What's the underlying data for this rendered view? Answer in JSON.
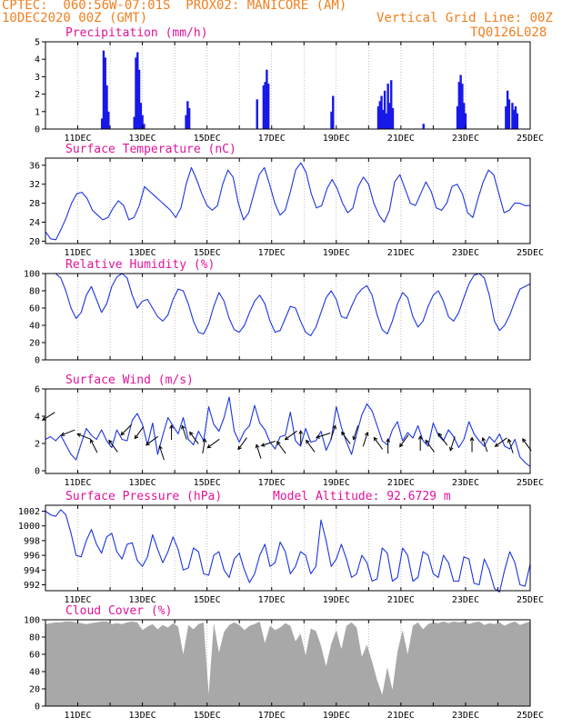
{
  "header": {
    "line1_left": "CPTEC:  060:56W-07:01S  PROX02: MANICORE (AM)",
    "line2_left": "10DEC2020 00Z (GMT)",
    "line2_right": "Vertical Grid Line: 00Z",
    "line3_right": "TQ0126L028"
  },
  "x_axis": {
    "start_day": 10,
    "end_day": 25,
    "labels": [
      "11DEC",
      "13DEC",
      "15DEC",
      "17DEC",
      "19DEC",
      "21DEC",
      "23DEC",
      "25DEC"
    ],
    "label_days": [
      11,
      13,
      15,
      17,
      19,
      21,
      23,
      25
    ]
  },
  "colors": {
    "line": "#1c36e0",
    "bars": "#1818e8",
    "cloud": "#a8a8a8",
    "title": "#e0149a",
    "header": "#f08020"
  },
  "chart_data": [
    {
      "type": "bar",
      "id": "precip",
      "title": "Precipitation (mm/h)",
      "ylim": [
        0,
        5
      ],
      "yticks": [
        "0",
        "1",
        "2",
        "3",
        "4",
        "5"
      ],
      "bars": [
        [
          11.75,
          0.6
        ],
        [
          11.8,
          4.5
        ],
        [
          11.85,
          4.1
        ],
        [
          11.9,
          2.5
        ],
        [
          11.95,
          1.0
        ],
        [
          12.75,
          0.7
        ],
        [
          12.8,
          4.1
        ],
        [
          12.85,
          4.4
        ],
        [
          12.9,
          3.4
        ],
        [
          12.95,
          1.5
        ],
        [
          13.0,
          0.8
        ],
        [
          13.05,
          0.3
        ],
        [
          14.35,
          0.8
        ],
        [
          14.4,
          1.6
        ],
        [
          14.45,
          1.2
        ],
        [
          16.55,
          1.7
        ],
        [
          16.75,
          2.5
        ],
        [
          16.8,
          2.7
        ],
        [
          16.85,
          3.4
        ],
        [
          16.9,
          2.6
        ],
        [
          18.85,
          1.0
        ],
        [
          18.9,
          1.9
        ],
        [
          20.3,
          1.3
        ],
        [
          20.35,
          1.6
        ],
        [
          20.4,
          1.9
        ],
        [
          20.45,
          1.1
        ],
        [
          20.5,
          2.2
        ],
        [
          20.55,
          0.9
        ],
        [
          20.6,
          2.6
        ],
        [
          20.65,
          1.5
        ],
        [
          20.7,
          2.8
        ],
        [
          20.75,
          1.2
        ],
        [
          21.7,
          0.3
        ],
        [
          22.75,
          1.3
        ],
        [
          22.8,
          2.7
        ],
        [
          22.85,
          3.1
        ],
        [
          22.9,
          2.6
        ],
        [
          22.95,
          1.5
        ],
        [
          23.0,
          0.9
        ],
        [
          24.25,
          1.3
        ],
        [
          24.3,
          2.2
        ],
        [
          24.35,
          1.7
        ],
        [
          24.45,
          1.5
        ],
        [
          24.5,
          1.1
        ],
        [
          24.55,
          1.3
        ],
        [
          24.6,
          0.9
        ]
      ]
    },
    {
      "type": "line",
      "id": "temp",
      "title": "Surface Temperature (nC)",
      "ylim": [
        19.5,
        37.5
      ],
      "yticks": [
        "20",
        "24",
        "28",
        "32",
        "36"
      ],
      "ytick_values": [
        20,
        24,
        28,
        32,
        36
      ],
      "values": [
        22,
        20.5,
        20.3,
        22.5,
        25,
        28,
        30,
        30.3,
        29,
        26.5,
        25.5,
        24.5,
        25,
        27,
        28.5,
        27.5,
        24.5,
        25,
        27.5,
        31.5,
        30.5,
        29.5,
        28.5,
        27.5,
        26.5,
        25,
        27,
        32,
        35.5,
        33,
        30,
        27.5,
        26.5,
        27.5,
        32,
        35,
        33.5,
        28,
        24.5,
        26,
        30,
        34,
        35.5,
        32,
        28,
        25.5,
        26.5,
        30.5,
        35,
        36.5,
        34.5,
        30,
        27,
        27.5,
        31,
        33,
        31,
        28,
        26,
        27,
        31.5,
        33.5,
        32,
        28,
        25.5,
        24,
        26.5,
        32.5,
        34,
        31,
        28,
        27.5,
        30,
        32.5,
        30.5,
        27,
        26.5,
        28,
        31.5,
        32,
        30,
        26,
        25,
        29,
        32.5,
        35,
        34,
        30,
        26,
        26.5,
        28,
        28,
        27.5,
        27.5
      ]
    },
    {
      "type": "line",
      "id": "rh",
      "title": "Relative Humidity (%)",
      "ylim": [
        0,
        100
      ],
      "yticks": [
        "0",
        "20",
        "40",
        "60",
        "80",
        "100"
      ],
      "ytick_values": [
        0,
        20,
        40,
        60,
        80,
        100
      ],
      "values": [
        100,
        100,
        100,
        95,
        80,
        60,
        48,
        55,
        75,
        85,
        70,
        55,
        65,
        85,
        96,
        100,
        95,
        75,
        60,
        68,
        70,
        60,
        50,
        45,
        52,
        70,
        82,
        80,
        65,
        45,
        32,
        30,
        42,
        62,
        78,
        68,
        48,
        35,
        32,
        40,
        55,
        68,
        75,
        65,
        45,
        32,
        34,
        48,
        62,
        60,
        45,
        32,
        28,
        38,
        55,
        72,
        80,
        70,
        50,
        48,
        62,
        75,
        82,
        86,
        75,
        52,
        35,
        30,
        45,
        65,
        78,
        72,
        50,
        38,
        45,
        62,
        75,
        80,
        68,
        50,
        45,
        55,
        72,
        88,
        98,
        100,
        95,
        75,
        45,
        34,
        40,
        52,
        68,
        82,
        85,
        88
      ]
    },
    {
      "type": "line",
      "id": "wind",
      "title": "Surface Wind (m/s)",
      "ylim": [
        -0.2,
        6
      ],
      "yticks": [
        "0",
        "2",
        "4",
        "6"
      ],
      "ytick_values": [
        0,
        2,
        4,
        6
      ],
      "values": [
        2.3,
        2.5,
        2.2,
        2.6,
        1.9,
        1.2,
        0.8,
        2.0,
        3.1,
        2.6,
        2.3,
        3.0,
        2.2,
        1.7,
        3.0,
        2.3,
        2.2,
        3.7,
        4.2,
        3.4,
        1.9,
        3.5,
        1.2,
        2.6,
        3.9,
        3.3,
        2.7,
        3.9,
        2.3,
        1.9,
        2.9,
        2.2,
        4.7,
        3.4,
        2.9,
        3.9,
        5.4,
        2.9,
        2.1,
        2.9,
        3.3,
        4.8,
        3.5,
        3.0,
        2.1,
        1.6,
        2.5,
        2.6,
        4.3,
        2.2,
        1.8,
        3.1,
        2.1,
        2.2,
        2.9,
        1.5,
        2.3,
        4.7,
        3.2,
        2.1,
        1.2,
        2.7,
        4.1,
        4.9,
        4.4,
        3.3,
        2.2,
        1.9,
        3.0,
        3.6,
        2.2,
        2.8,
        2.4,
        3.3,
        2.2,
        1.8,
        3.5,
        2.6,
        2.2,
        3.0,
        2.5,
        1.7,
        2.3,
        3.6,
        2.7,
        2.2,
        1.8,
        2.5,
        2.1,
        2.7,
        1.8,
        1.6,
        2.3,
        1.0,
        0.6,
        0.3
      ],
      "arrows": [
        [
          10.1,
          4,
          0.18
        ],
        [
          10.7,
          2.8,
          0.12
        ],
        [
          11.2,
          2.5,
          -0.12
        ],
        [
          11.5,
          1.8,
          -0.35
        ],
        [
          12.1,
          1.8,
          -0.3
        ],
        [
          12.5,
          3.0,
          0.25
        ],
        [
          12.9,
          2.8,
          0.3
        ],
        [
          13.3,
          2.2,
          0.2
        ],
        [
          13.6,
          1.3,
          -0.4
        ],
        [
          13.9,
          2.8,
          -0.5
        ],
        [
          14.3,
          2.8,
          -0.4
        ],
        [
          14.6,
          2.4,
          -0.3
        ],
        [
          14.9,
          1.8,
          -0.55
        ],
        [
          15.2,
          2.0,
          0.2
        ],
        [
          16.1,
          2.0,
          0.3
        ],
        [
          16.6,
          1.4,
          -0.4
        ],
        [
          16.9,
          2.0,
          0.1
        ],
        [
          17.3,
          1.7,
          -0.3
        ],
        [
          17.6,
          2.6,
          0.2
        ],
        [
          17.9,
          2.4,
          -0.5
        ],
        [
          18.2,
          1.8,
          -0.3
        ],
        [
          18.6,
          2.6,
          0.1
        ],
        [
          18.9,
          2.8,
          -0.6
        ],
        [
          19.3,
          2.4,
          -0.3
        ],
        [
          19.6,
          2.8,
          0.4
        ],
        [
          19.9,
          2.3,
          -0.6
        ],
        [
          20.3,
          2.0,
          -0.3
        ],
        [
          20.6,
          1.8,
          -0.5
        ],
        [
          21.1,
          2.2,
          0.3
        ],
        [
          21.6,
          2.0,
          -0.5
        ],
        [
          21.9,
          1.8,
          -0.3
        ],
        [
          22.3,
          2.3,
          -0.3
        ],
        [
          22.6,
          2.0,
          0.4
        ],
        [
          23.2,
          1.9,
          -0.5
        ],
        [
          23.6,
          1.9,
          -0.4
        ],
        [
          24.1,
          2.1,
          0.2
        ],
        [
          24.4,
          1.8,
          -0.4
        ],
        [
          24.9,
          1.9,
          -0.3
        ]
      ]
    },
    {
      "type": "line",
      "id": "pres",
      "title": "Surface Pressure (hPa)",
      "annotation": "Model Altitude: 92.6729 m",
      "ylim": [
        991.2,
        1002.8
      ],
      "yticks": [
        "992",
        "994",
        "996",
        "998",
        "1000",
        "1002"
      ],
      "ytick_values": [
        992,
        994,
        996,
        998,
        1000,
        1002
      ],
      "values": [
        1002,
        1001.5,
        1001.3,
        1002.2,
        1001.5,
        999,
        996,
        995.8,
        998,
        999.5,
        997.5,
        996.3,
        998.5,
        999,
        996.5,
        995.5,
        997.5,
        997.7,
        995.3,
        994.5,
        995.8,
        998.8,
        996.8,
        995,
        996.5,
        998.5,
        996.8,
        994,
        994.3,
        997,
        996.5,
        993.5,
        993.3,
        996,
        996.5,
        994,
        993,
        995.5,
        996.3,
        994,
        992.3,
        993.5,
        996,
        997.5,
        994.5,
        995,
        997.8,
        996.5,
        993.5,
        994.5,
        996.5,
        996,
        993.5,
        994.5,
        1000.8,
        998,
        994.5,
        995.5,
        997.5,
        995.5,
        993,
        993.5,
        996,
        995,
        992.5,
        992.8,
        997,
        996.3,
        992.5,
        993,
        997,
        996,
        992.5,
        993,
        996.5,
        996,
        993.5,
        993,
        996,
        995,
        992.5,
        992.5,
        995.8,
        995.5,
        992.2,
        992,
        995.5,
        994,
        991.5,
        991,
        994,
        996.5,
        995,
        992,
        991.8,
        994.8
      ]
    },
    {
      "type": "area",
      "id": "cloud",
      "title": "Cloud Cover (%)",
      "ylim": [
        0,
        100
      ],
      "yticks": [
        "0",
        "20",
        "40",
        "60",
        "80",
        "100"
      ],
      "ytick_values": [
        0,
        20,
        40,
        60,
        80,
        100
      ],
      "values": [
        95,
        96,
        97,
        97,
        98,
        98,
        97,
        96,
        95,
        96,
        97,
        98,
        98,
        95,
        96,
        95,
        97,
        98,
        97,
        88,
        92,
        95,
        89,
        94,
        91,
        96,
        92,
        60,
        94,
        89,
        95,
        97,
        14,
        96,
        62,
        86,
        94,
        97,
        94,
        88,
        93,
        95,
        98,
        73,
        93,
        88,
        91,
        96,
        93,
        75,
        84,
        59,
        90,
        87,
        70,
        46,
        72,
        88,
        66,
        93,
        97,
        91,
        57,
        71,
        52,
        30,
        13,
        45,
        19,
        63,
        88,
        60,
        93,
        97,
        89,
        95,
        97,
        96,
        98,
        96,
        98,
        97,
        98,
        95,
        97,
        98,
        94,
        96,
        95,
        97,
        93,
        96,
        98,
        94,
        96,
        98
      ]
    }
  ]
}
